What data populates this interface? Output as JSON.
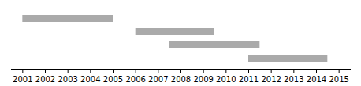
{
  "chart_data": {
    "type": "range_bar",
    "orientation": "horizontal",
    "categories": [
      null,
      null,
      null,
      null
    ],
    "starts": [
      2001,
      2006,
      2007.5,
      2011
    ],
    "ends": [
      2005,
      2009.5,
      2011.5,
      2014.5
    ],
    "color": "#aaaaaa",
    "xlim": [
      2000.5,
      2015.5
    ],
    "xticks": [
      2001,
      2002,
      2003,
      2004,
      2005,
      2006,
      2007,
      2008,
      2009,
      2010,
      2011,
      2012,
      2013,
      2014,
      2015
    ],
    "tick_labels": "x"
  }
}
